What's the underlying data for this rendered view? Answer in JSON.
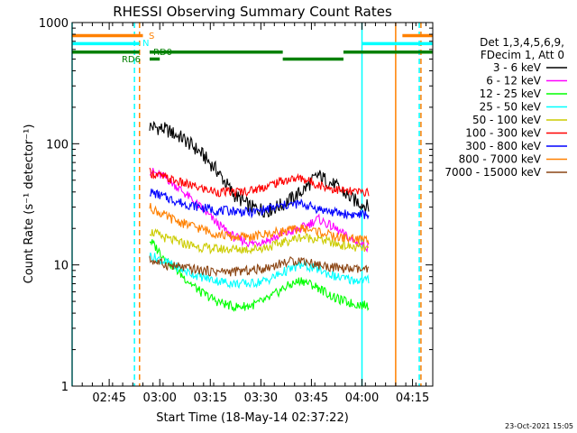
{
  "chart_data": {
    "type": "line",
    "title": "RHESSI Observing Summary Count Rates",
    "xlabel": "Start Time (18-May-14 02:37:22)",
    "ylabel": "Count Rate (s⁻¹ detector⁻¹)",
    "yscale": "log",
    "ylim": [
      1,
      1000
    ],
    "xlim_minutes": [
      -3,
      104
    ],
    "x_ticks": [
      {
        "min": 8,
        "label": "02:45"
      },
      {
        "min": 23,
        "label": "03:00"
      },
      {
        "min": 38,
        "label": "03:15"
      },
      {
        "min": 53,
        "label": "03:30"
      },
      {
        "min": 68,
        "label": "03:45"
      },
      {
        "min": 83,
        "label": "04:00"
      },
      {
        "min": 98,
        "label": "04:15"
      }
    ],
    "y_ticks": [
      {
        "value": 1,
        "label": "1"
      },
      {
        "value": 10,
        "label": "10"
      },
      {
        "value": 100,
        "label": "100"
      },
      {
        "value": 1000,
        "label": "1000"
      }
    ],
    "legend": {
      "position": "right",
      "header": [
        "Det 1,3,4,5,6,9,",
        "FDecim 1, Att 0"
      ]
    },
    "series": [
      {
        "name": "3 - 6 keV",
        "color": "#000000",
        "x": [
          20,
          25,
          30,
          35,
          40,
          45,
          50,
          55,
          60,
          65,
          70,
          75,
          80,
          85
        ],
        "y": [
          140,
          130,
          110,
          85,
          60,
          38,
          30,
          28,
          32,
          40,
          55,
          45,
          35,
          30
        ]
      },
      {
        "name": "6 - 12 keV",
        "color": "#ff00ff",
        "x": [
          20,
          25,
          30,
          35,
          40,
          45,
          50,
          55,
          60,
          65,
          70,
          75,
          80,
          85
        ],
        "y": [
          60,
          52,
          40,
          30,
          22,
          17,
          15,
          16,
          18,
          20,
          24,
          20,
          16,
          14
        ]
      },
      {
        "name": "12 - 25 keV",
        "color": "#00ff00",
        "x": [
          20,
          25,
          30,
          35,
          40,
          45,
          50,
          55,
          60,
          65,
          70,
          75,
          80,
          85
        ],
        "y": [
          16,
          11,
          8,
          6,
          5,
          4.5,
          4.6,
          5.2,
          6.5,
          7.5,
          6.5,
          5.3,
          4.8,
          4.6
        ]
      },
      {
        "name": "25 - 50 keV",
        "color": "#00ffff",
        "x": [
          20,
          25,
          30,
          35,
          40,
          45,
          50,
          55,
          60,
          65,
          70,
          75,
          80,
          85
        ],
        "y": [
          12,
          10.5,
          9,
          8,
          7.4,
          7,
          7,
          7.5,
          8.8,
          10,
          9.2,
          8,
          7.5,
          7.5
        ]
      },
      {
        "name": "50 - 100 keV",
        "color": "#cccc00",
        "x": [
          20,
          25,
          30,
          35,
          40,
          45,
          50,
          55,
          60,
          65,
          70,
          75,
          80,
          85
        ],
        "y": [
          19,
          16.5,
          15,
          14,
          13.5,
          13.5,
          13.5,
          14,
          15.5,
          17,
          16.5,
          15,
          14,
          13.5
        ]
      },
      {
        "name": "100 - 300 keV",
        "color": "#ff0000",
        "x": [
          20,
          25,
          30,
          35,
          40,
          45,
          50,
          55,
          60,
          65,
          70,
          75,
          80,
          85
        ],
        "y": [
          58,
          52,
          47,
          43,
          40,
          40,
          41,
          45,
          50,
          52,
          46,
          42,
          40,
          40
        ]
      },
      {
        "name": "300 - 800 keV",
        "color": "#0000ff",
        "x": [
          20,
          25,
          30,
          35,
          40,
          45,
          50,
          55,
          60,
          65,
          70,
          75,
          80,
          85
        ],
        "y": [
          40,
          36,
          32,
          30,
          28,
          28,
          27,
          29,
          31,
          32,
          29,
          27,
          26,
          26
        ]
      },
      {
        "name": "800 - 7000 keV",
        "color": "#ff8000",
        "x": [
          20,
          25,
          30,
          35,
          40,
          45,
          50,
          55,
          60,
          65,
          70,
          75,
          80,
          85
        ],
        "y": [
          30,
          25,
          22,
          20,
          18,
          17,
          17,
          18,
          19,
          20,
          19,
          17,
          16.5,
          16
        ]
      },
      {
        "name": "7000 - 15000 keV",
        "color": "#8b4513",
        "x": [
          20,
          25,
          30,
          35,
          40,
          45,
          50,
          55,
          60,
          65,
          70,
          75,
          80,
          85
        ],
        "y": [
          11,
          10,
          9.5,
          9,
          8.8,
          8.8,
          9,
          9.5,
          10.5,
          11,
          10,
          9.5,
          9.2,
          9
        ]
      }
    ],
    "flags": [
      {
        "label": "S",
        "color": "#ff8000",
        "level": 780,
        "segments": [
          [
            -3,
            18
          ],
          [
            95,
            104
          ]
        ]
      },
      {
        "label": "N",
        "color": "#00ffff",
        "level": 670,
        "segments": [
          [
            -3,
            17
          ],
          [
            83,
            104
          ]
        ]
      },
      {
        "label": "RD0",
        "color": "#008000",
        "level": 570,
        "segments": [
          [
            20,
            59.5
          ],
          [
            77.5,
            104
          ]
        ]
      },
      {
        "label": "RD6",
        "color": "#008000",
        "level": 570,
        "segments": [
          [
            -3,
            17
          ]
        ]
      },
      {
        "label": "",
        "color": "#008000",
        "level": 500,
        "segments": [
          [
            20,
            23
          ],
          [
            59.5,
            77.5
          ]
        ]
      }
    ],
    "vlines": [
      {
        "min": -3,
        "color": "#00ffff",
        "style": "solid"
      },
      {
        "min": 15.5,
        "color": "#00ffff",
        "style": "dashed"
      },
      {
        "min": 17,
        "color": "#ff8000",
        "style": "dashed"
      },
      {
        "min": 83,
        "color": "#00ffff",
        "style": "solid"
      },
      {
        "min": 93,
        "color": "#ff8000",
        "style": "solid"
      },
      {
        "min": 100,
        "color": "#00ffff",
        "style": "dashed"
      },
      {
        "min": 100.5,
        "color": "#ff8000",
        "style": "dashed"
      }
    ]
  },
  "footer": {
    "timestamp": "23-Oct-2021 15:05"
  }
}
